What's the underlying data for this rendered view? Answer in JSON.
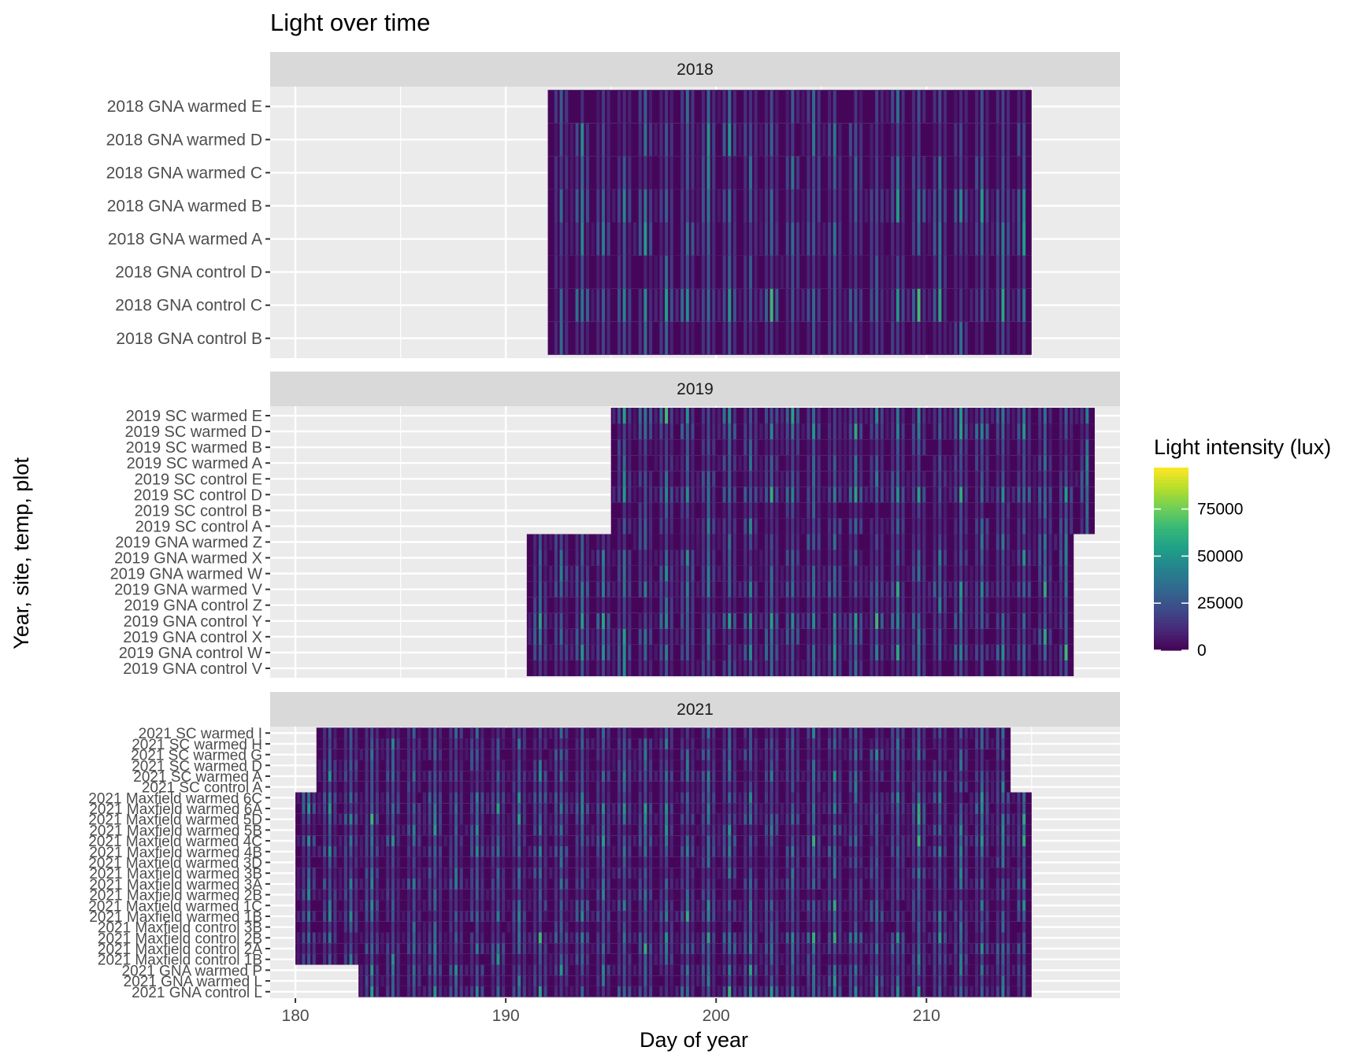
{
  "chart_data": {
    "type": "heatmap",
    "title": "Light over time",
    "xlabel": "Day of year",
    "ylabel": "Year, site, temp, plot",
    "xlim": [
      178.8,
      219.2
    ],
    "x_ticks": [
      180,
      190,
      200,
      210
    ],
    "x_tick_labels": [
      "180",
      "190",
      "200",
      "210"
    ],
    "grid": true,
    "legend": {
      "title": "Light intensity (lux)",
      "position": "right",
      "type": "colorbar",
      "colormap": "viridis",
      "range": [
        0,
        97000
      ],
      "breaks": [
        0,
        25000,
        50000,
        75000
      ],
      "break_labels": [
        "0",
        "25000",
        "50000",
        "75000"
      ]
    },
    "facets": [
      {
        "label": "2018",
        "rows": [
          "2018 GNA control B",
          "2018 GNA control C",
          "2018 GNA control D",
          "2018 GNA warmed A",
          "2018 GNA warmed B",
          "2018 GNA warmed C",
          "2018 GNA warmed D",
          "2018 GNA warmed E"
        ],
        "blocks": [
          {
            "from": "2018 GNA control B",
            "to": "2018 GNA warmed E",
            "start_day": 192.0,
            "end_day": 215.0
          }
        ]
      },
      {
        "label": "2019",
        "rows": [
          "2019 GNA control V",
          "2019 GNA control W",
          "2019 GNA control X",
          "2019 GNA control Y",
          "2019 GNA control Z",
          "2019 GNA warmed V",
          "2019 GNA warmed W",
          "2019 GNA warmed X",
          "2019 GNA warmed Z",
          "2019 SC control A",
          "2019 SC control B",
          "2019 SC control D",
          "2019 SC control E",
          "2019 SC warmed A",
          "2019 SC warmed B",
          "2019 SC warmed D",
          "2019 SC warmed E"
        ],
        "blocks": [
          {
            "from": "2019 GNA control V",
            "to": "2019 GNA warmed Z",
            "start_day": 191.0,
            "end_day": 217.0
          },
          {
            "from": "2019 SC control A",
            "to": "2019 SC warmed E",
            "start_day": 195.0,
            "end_day": 218.0
          }
        ]
      },
      {
        "label": "2021",
        "rows": [
          "2021 GNA control L",
          "2021 GNA warmed L",
          "2021 GNA warmed P",
          "2021 Maxfield control 1B",
          "2021 Maxfield control 2A",
          "2021 Maxfield control 2B",
          "2021 Maxfield control 3B",
          "2021 Maxfield warmed 1B",
          "2021 Maxfield warmed 1C",
          "2021 Maxfield warmed 2B",
          "2021 Maxfield warmed 3A",
          "2021 Maxfield warmed 3B",
          "2021 Maxfield warmed 3D",
          "2021 Maxfield warmed 4B",
          "2021 Maxfield warmed 4C",
          "2021 Maxfield warmed 5B",
          "2021 Maxfield warmed 5D",
          "2021 Maxfield warmed 6A",
          "2021 Maxfield warmed 6C",
          "2021 SC control A",
          "2021 SC warmed A",
          "2021 SC warmed D",
          "2021 SC warmed G",
          "2021 SC warmed H",
          "2021 SC warmed I"
        ],
        "blocks": [
          {
            "from": "2021 GNA control L",
            "to": "2021 GNA warmed P",
            "start_day": 183.0,
            "end_day": 215.0
          },
          {
            "from": "2021 Maxfield control 1B",
            "to": "2021 Maxfield warmed 6C",
            "start_day": 180.0,
            "end_day": 215.0
          },
          {
            "from": "2021 SC control A",
            "to": "2021 SC warmed I",
            "start_day": 181.0,
            "end_day": 214.0
          }
        ]
      }
    ]
  }
}
